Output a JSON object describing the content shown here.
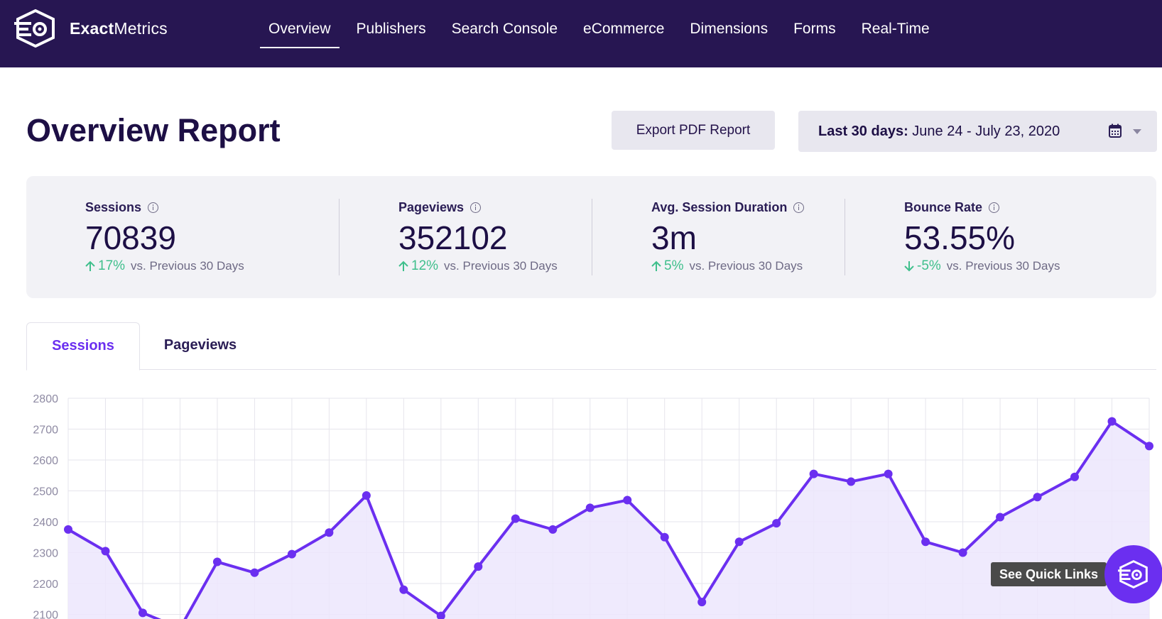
{
  "brand": {
    "name_bold": "Exact",
    "name_light": "Metrics",
    "accent": "#6b2ff0",
    "nav_bg": "#271652"
  },
  "nav": {
    "items": [
      {
        "label": "Overview",
        "active": true
      },
      {
        "label": "Publishers",
        "active": false
      },
      {
        "label": "Search Console",
        "active": false
      },
      {
        "label": "eCommerce",
        "active": false
      },
      {
        "label": "Dimensions",
        "active": false
      },
      {
        "label": "Forms",
        "active": false
      },
      {
        "label": "Real-Time",
        "active": false
      }
    ]
  },
  "header": {
    "title": "Overview Report",
    "export_label": "Export PDF Report",
    "date_range_prefix": "Last 30 days:",
    "date_range_value": "June 24 - July 23, 2020",
    "calendar_icon": "calendar-icon",
    "caret_icon": "chevron-down-icon"
  },
  "stats": [
    {
      "label": "Sessions",
      "value": "70839",
      "change": "17%",
      "direction": "up",
      "comparison": "vs. Previous 30 Days"
    },
    {
      "label": "Pageviews",
      "value": "352102",
      "change": "12%",
      "direction": "up",
      "comparison": "vs. Previous 30 Days"
    },
    {
      "label": "Avg. Session Duration",
      "value": "3m",
      "change": "5%",
      "direction": "up",
      "comparison": "vs. Previous 30 Days"
    },
    {
      "label": "Bounce Rate",
      "value": "53.55%",
      "change": "-5%",
      "direction": "down",
      "comparison": "vs. Previous 30 Days"
    }
  ],
  "tabs": [
    {
      "label": "Sessions",
      "active": true
    },
    {
      "label": "Pageviews",
      "active": false
    }
  ],
  "chart_data": {
    "type": "area",
    "yticks": [
      2800,
      2700,
      2600,
      2500,
      2400,
      2300,
      2200,
      2100
    ],
    "ylim": [
      2060,
      2800
    ],
    "grid": true,
    "line_color": "#6b2ff0",
    "fill_color": "#ece6fd",
    "series": [
      {
        "values": [
          2375,
          2305,
          2105,
          2055,
          2270,
          2235,
          2295,
          2365,
          2485,
          2180,
          2095,
          2255,
          2410,
          2375,
          2445,
          2470,
          2350,
          2140,
          2335,
          2395,
          2555,
          2530,
          2555,
          2335,
          2300,
          2415,
          2480,
          2545,
          2725,
          2645
        ]
      }
    ]
  },
  "quick_links": {
    "label": "See Quick Links",
    "icon": "exactmetrics-logo-icon"
  }
}
